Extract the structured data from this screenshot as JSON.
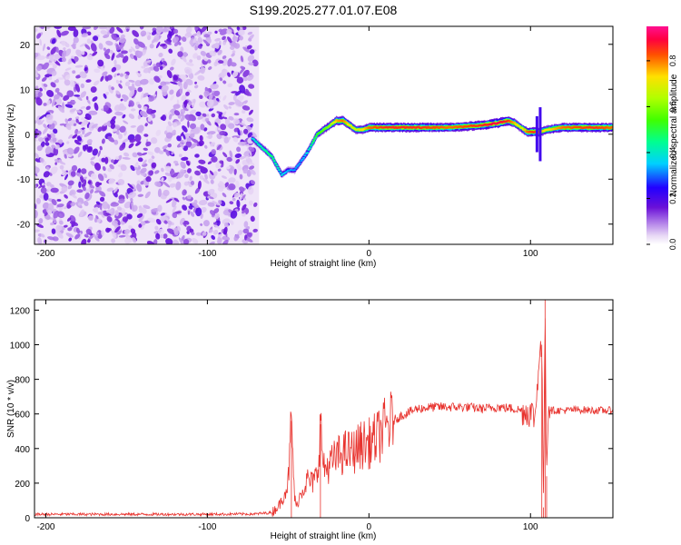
{
  "figure_title": "S199.2025.277.01.07.E08",
  "colors": {
    "snr_line": "#e8322d",
    "axis": "#000000"
  },
  "chart_data": [
    {
      "type": "heatmap",
      "title": "S199.2025.277.01.07.E08",
      "xlabel": "Height of straight line (km)",
      "ylabel": "Frequency (Hz)",
      "xlim": [
        -207,
        151
      ],
      "ylim": [
        -24.5,
        24
      ],
      "x_ticks": [
        -200,
        -100,
        0,
        100
      ],
      "y_ticks": [
        -20,
        -10,
        0,
        10,
        20
      ],
      "noise_region_x": [
        -207,
        -68
      ],
      "ridge": {
        "x": [
          -72,
          -66,
          -60,
          -57,
          -54,
          -50,
          -46,
          -42,
          -38,
          -35,
          -32,
          -28,
          -24,
          -20,
          -16,
          -12,
          -8,
          -4,
          0,
          10,
          30,
          50,
          70,
          80,
          86,
          90,
          94,
          98,
          102,
          106,
          110,
          120,
          140,
          151
        ],
        "y": [
          -1,
          -3,
          -5,
          -7,
          -9,
          -8,
          -8,
          -6,
          -4,
          -2,
          0,
          1,
          2,
          3,
          3,
          2,
          1,
          1,
          1.5,
          1.5,
          1.5,
          1.5,
          2,
          2.5,
          3,
          2.5,
          1.5,
          0.5,
          0.5,
          0.5,
          1,
          1.5,
          1.5,
          1.5
        ],
        "amplitude": [
          0.4,
          0.45,
          0.5,
          0.45,
          0.4,
          0.35,
          0.35,
          0.35,
          0.4,
          0.5,
          0.55,
          0.6,
          0.65,
          0.8,
          0.85,
          0.75,
          0.7,
          0.75,
          0.85,
          0.9,
          0.9,
          0.85,
          0.9,
          0.95,
          0.9,
          0.8,
          0.7,
          0.85,
          0.9,
          0.8,
          0.75,
          0.85,
          0.9,
          0.85
        ]
      },
      "colorbar": {
        "label": "Normalized spectral amplitude",
        "range": [
          0.0,
          0.95
        ],
        "ticks": [
          "0.0",
          "0.2",
          "0.4",
          "0.6",
          "0.8"
        ],
        "tick_values": [
          0.0,
          0.2,
          0.4,
          0.6,
          0.8
        ]
      }
    },
    {
      "type": "line",
      "title": "",
      "xlabel": "Height of straight line (km)",
      "ylabel": "SNR (10 * v/v)",
      "xlim": [
        -207,
        151
      ],
      "ylim": [
        0,
        1260
      ],
      "x_ticks": [
        -200,
        -100,
        0,
        100
      ],
      "y_ticks": [
        0,
        200,
        400,
        600,
        800,
        1000,
        1200
      ],
      "series": [
        {
          "name": "SNR",
          "x": [
            -207,
            -150,
            -100,
            -70,
            -60,
            -55,
            -50,
            -48,
            -46,
            -45,
            -42,
            -38,
            -35,
            -32,
            -30,
            -28,
            -25,
            -20,
            -15,
            -10,
            -5,
            0,
            5,
            10,
            15,
            20,
            25,
            30,
            40,
            50,
            60,
            70,
            80,
            90,
            95,
            100,
            103,
            105,
            107,
            108,
            109,
            110,
            111,
            113,
            115,
            120,
            130,
            140,
            151
          ],
          "y": [
            20,
            20,
            20,
            22,
            30,
            80,
            200,
            560,
            120,
            60,
            150,
            220,
            200,
            250,
            540,
            280,
            300,
            350,
            380,
            380,
            420,
            430,
            460,
            520,
            560,
            590,
            610,
            630,
            640,
            640,
            640,
            630,
            640,
            630,
            620,
            610,
            580,
            900,
            1000,
            60,
            1260,
            240,
            660,
            620,
            620,
            620,
            625,
            620,
            620
          ]
        }
      ],
      "grid": false
    }
  ]
}
